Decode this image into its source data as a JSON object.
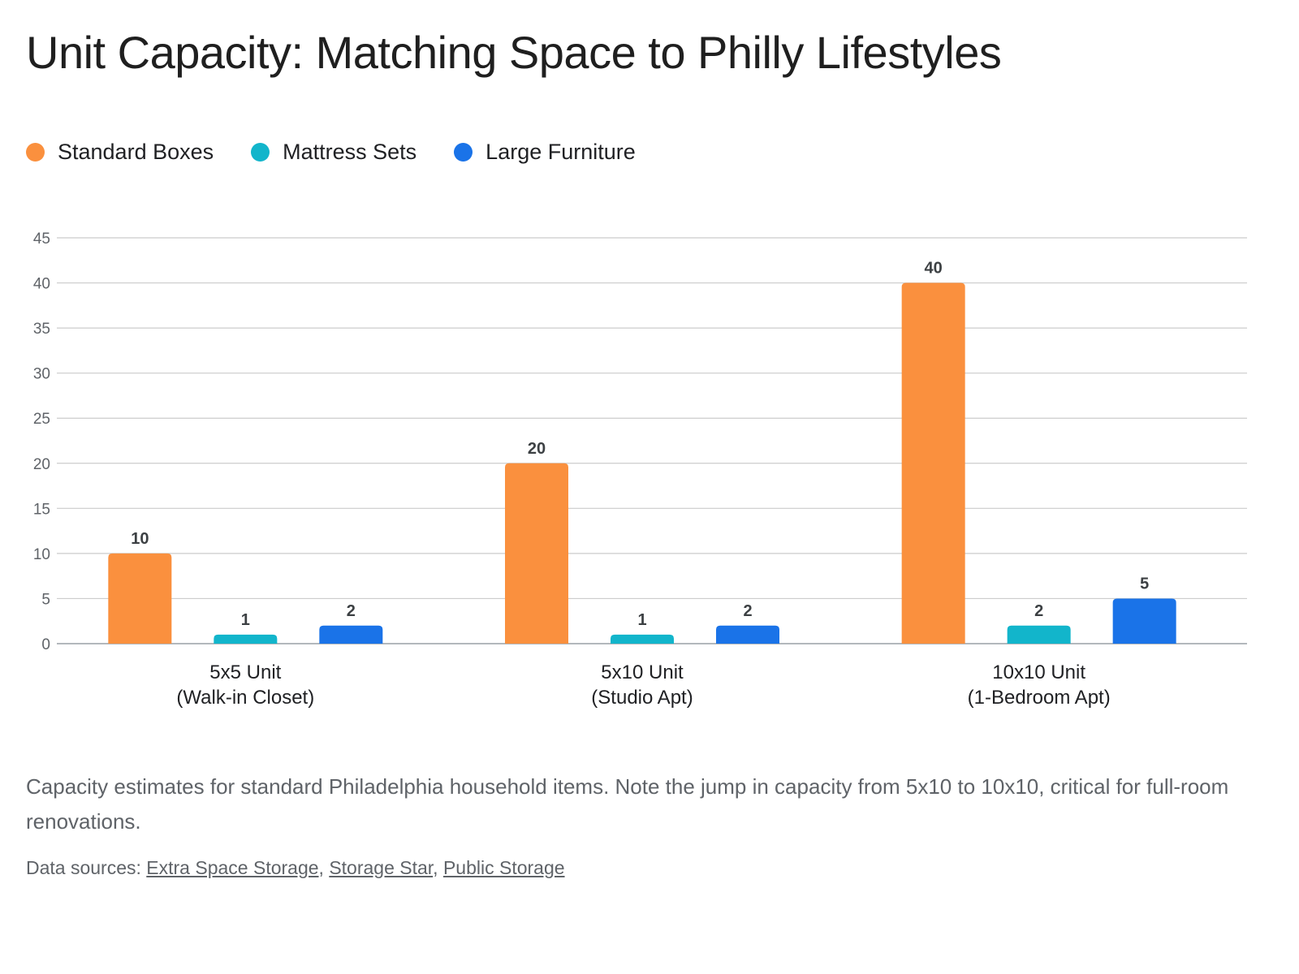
{
  "title": "Unit Capacity: Matching Space to Philly Lifestyles",
  "caption": "Capacity estimates for standard Philadelphia household items. Note the jump in capacity from 5x10 to 10x10, critical for full-room renovations.",
  "sources": {
    "label": "Data sources:",
    "links": [
      "Extra Space Storage",
      "Storage Star",
      "Public Storage"
    ]
  },
  "chart_data": {
    "type": "bar",
    "title": "Unit Capacity: Matching Space to Philly Lifestyles",
    "xlabel": "",
    "ylabel": "",
    "categories": [
      [
        "5x5 Unit",
        "(Walk-in Closet)"
      ],
      [
        "5x10 Unit",
        "(Studio Apt)"
      ],
      [
        "10x10 Unit",
        "(1-Bedroom Apt)"
      ]
    ],
    "series": [
      {
        "name": "Standard Boxes",
        "color": "#fa903e",
        "values": [
          10,
          20,
          40
        ]
      },
      {
        "name": "Mattress Sets",
        "color": "#12b5cb",
        "values": [
          1,
          1,
          2
        ]
      },
      {
        "name": "Large Furniture",
        "color": "#1a73e8",
        "values": [
          2,
          2,
          5
        ]
      }
    ],
    "ylim": [
      0,
      45
    ],
    "yticks": [
      0,
      5,
      10,
      15,
      20,
      25,
      30,
      35,
      40,
      45
    ],
    "grid": true,
    "legend": "top-left",
    "data_labels": true
  }
}
